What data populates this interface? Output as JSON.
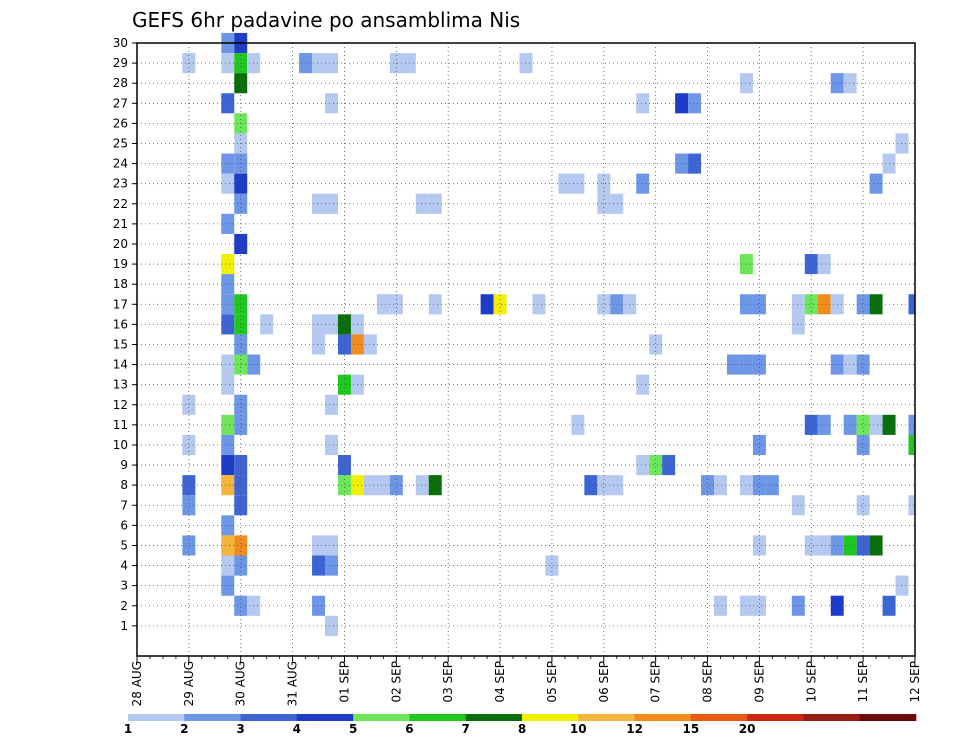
{
  "chart_data": {
    "type": "heatmap",
    "title": "GEFS 6hr padavine po ansamblima Nis",
    "x_labels": [
      "28 AUG",
      "29 AUG",
      "30 AUG",
      "31 AUG",
      "01 SEP",
      "02 SEP",
      "03 SEP",
      "04 SEP",
      "05 SEP",
      "06 SEP",
      "07 SEP",
      "08 SEP",
      "09 SEP",
      "10 SEP",
      "11 SEP",
      "12 SEP"
    ],
    "y_labels": [
      "1",
      "2",
      "3",
      "4",
      "5",
      "6",
      "7",
      "8",
      "9",
      "10",
      "11",
      "12",
      "13",
      "14",
      "15",
      "16",
      "17",
      "18",
      "19",
      "20",
      "21",
      "22",
      "23",
      "24",
      "25",
      "26",
      "27",
      "28",
      "29",
      "30"
    ],
    "steps_per_day": 4,
    "grid": true,
    "colorbar": {
      "tick_labels": [
        "1",
        "2",
        "3",
        "4",
        "5",
        "6",
        "7",
        "8",
        "10",
        "12",
        "15",
        "20"
      ],
      "colors": [
        "#b4c8f0",
        "#6e96e6",
        "#3c64d2",
        "#1e3cc8",
        "#6ee65a",
        "#1ec81e",
        "#0a6e0a",
        "#f0f000",
        "#f5b43c",
        "#f08c1e",
        "#e65a14",
        "#cd2814",
        "#961e14",
        "#6e0a0a"
      ]
    },
    "cells": [
      {
        "t": 7,
        "m": 30,
        "v": 2
      },
      {
        "t": 8,
        "m": 30,
        "v": 4.5
      },
      {
        "t": 4,
        "m": 29,
        "v": 1
      },
      {
        "t": 7,
        "m": 29,
        "v": 1
      },
      {
        "t": 8,
        "m": 29,
        "v": 6
      },
      {
        "t": 9,
        "m": 29,
        "v": 1
      },
      {
        "t": 13,
        "m": 29,
        "v": 2
      },
      {
        "t": 14,
        "m": 29,
        "v": 1
      },
      {
        "t": 15,
        "m": 29,
        "v": 1
      },
      {
        "t": 20,
        "m": 29,
        "v": 1
      },
      {
        "t": 21,
        "m": 29,
        "v": 1
      },
      {
        "t": 30,
        "m": 29,
        "v": 1
      },
      {
        "t": 8,
        "m": 28,
        "v": 7.5
      },
      {
        "t": 47,
        "m": 28,
        "v": 1
      },
      {
        "t": 54,
        "m": 28,
        "v": 2
      },
      {
        "t": 55,
        "m": 28,
        "v": 1
      },
      {
        "t": 7,
        "m": 27,
        "v": 3
      },
      {
        "t": 15,
        "m": 27,
        "v": 1
      },
      {
        "t": 39,
        "m": 27,
        "v": 1
      },
      {
        "t": 42,
        "m": 27,
        "v": 4.5
      },
      {
        "t": 43,
        "m": 27,
        "v": 2
      },
      {
        "t": 8,
        "m": 26,
        "v": 5.5
      },
      {
        "t": 8,
        "m": 25,
        "v": 1
      },
      {
        "t": 59,
        "m": 25,
        "v": 1
      },
      {
        "t": 7,
        "m": 24,
        "v": 2
      },
      {
        "t": 8,
        "m": 24,
        "v": 2
      },
      {
        "t": 42,
        "m": 24,
        "v": 2
      },
      {
        "t": 43,
        "m": 24,
        "v": 3
      },
      {
        "t": 58,
        "m": 24,
        "v": 1
      },
      {
        "t": 7,
        "m": 23,
        "v": 1
      },
      {
        "t": 8,
        "m": 23,
        "v": 4.5
      },
      {
        "t": 33,
        "m": 23,
        "v": 1
      },
      {
        "t": 34,
        "m": 23,
        "v": 1
      },
      {
        "t": 36,
        "m": 23,
        "v": 1
      },
      {
        "t": 39,
        "m": 23,
        "v": 2
      },
      {
        "t": 57,
        "m": 23,
        "v": 2
      },
      {
        "t": 8,
        "m": 22,
        "v": 2
      },
      {
        "t": 14,
        "m": 22,
        "v": 1
      },
      {
        "t": 15,
        "m": 22,
        "v": 1
      },
      {
        "t": 22,
        "m": 22,
        "v": 1
      },
      {
        "t": 23,
        "m": 22,
        "v": 1
      },
      {
        "t": 36,
        "m": 22,
        "v": 1
      },
      {
        "t": 37,
        "m": 22,
        "v": 1
      },
      {
        "t": 7,
        "m": 21,
        "v": 2
      },
      {
        "t": 8,
        "m": 20,
        "v": 4.5
      },
      {
        "t": 7,
        "m": 19,
        "v": 9
      },
      {
        "t": 47,
        "m": 19,
        "v": 5.5
      },
      {
        "t": 52,
        "m": 19,
        "v": 3
      },
      {
        "t": 53,
        "m": 19,
        "v": 1
      },
      {
        "t": 7,
        "m": 18,
        "v": 2
      },
      {
        "t": 7,
        "m": 17,
        "v": 2
      },
      {
        "t": 8,
        "m": 17,
        "v": 6.5
      },
      {
        "t": 19,
        "m": 17,
        "v": 1
      },
      {
        "t": 20,
        "m": 17,
        "v": 1
      },
      {
        "t": 23,
        "m": 17,
        "v": 1
      },
      {
        "t": 27,
        "m": 17,
        "v": 4.5
      },
      {
        "t": 28,
        "m": 17,
        "v": 9
      },
      {
        "t": 31,
        "m": 17,
        "v": 1
      },
      {
        "t": 36,
        "m": 17,
        "v": 1
      },
      {
        "t": 37,
        "m": 17,
        "v": 2
      },
      {
        "t": 38,
        "m": 17,
        "v": 1
      },
      {
        "t": 47,
        "m": 17,
        "v": 2
      },
      {
        "t": 48,
        "m": 17,
        "v": 2
      },
      {
        "t": 51,
        "m": 17,
        "v": 1
      },
      {
        "t": 52,
        "m": 17,
        "v": 5.5
      },
      {
        "t": 53,
        "m": 17,
        "v": 13
      },
      {
        "t": 54,
        "m": 17,
        "v": 1
      },
      {
        "t": 56,
        "m": 17,
        "v": 2
      },
      {
        "t": 57,
        "m": 17,
        "v": 7.5
      },
      {
        "t": 60,
        "m": 17,
        "v": 3
      },
      {
        "t": 7,
        "m": 16,
        "v": 3
      },
      {
        "t": 8,
        "m": 16,
        "v": 6.5
      },
      {
        "t": 10,
        "m": 16,
        "v": 1
      },
      {
        "t": 14,
        "m": 16,
        "v": 1
      },
      {
        "t": 15,
        "m": 16,
        "v": 1
      },
      {
        "t": 16,
        "m": 16,
        "v": 7.5
      },
      {
        "t": 17,
        "m": 16,
        "v": 1
      },
      {
        "t": 51,
        "m": 16,
        "v": 1
      },
      {
        "t": 8,
        "m": 15,
        "v": 2
      },
      {
        "t": 14,
        "m": 15,
        "v": 1
      },
      {
        "t": 16,
        "m": 15,
        "v": 3
      },
      {
        "t": 17,
        "m": 15,
        "v": 13
      },
      {
        "t": 18,
        "m": 15,
        "v": 1
      },
      {
        "t": 40,
        "m": 15,
        "v": 1
      },
      {
        "t": 7,
        "m": 14,
        "v": 1
      },
      {
        "t": 8,
        "m": 14,
        "v": 5.5
      },
      {
        "t": 9,
        "m": 14,
        "v": 2
      },
      {
        "t": 46,
        "m": 14,
        "v": 2
      },
      {
        "t": 47,
        "m": 14,
        "v": 2
      },
      {
        "t": 48,
        "m": 14,
        "v": 2
      },
      {
        "t": 54,
        "m": 14,
        "v": 2
      },
      {
        "t": 55,
        "m": 14,
        "v": 1
      },
      {
        "t": 56,
        "m": 14,
        "v": 2
      },
      {
        "t": 7,
        "m": 13,
        "v": 1
      },
      {
        "t": 16,
        "m": 13,
        "v": 6.5
      },
      {
        "t": 17,
        "m": 13,
        "v": 1
      },
      {
        "t": 39,
        "m": 13,
        "v": 1
      },
      {
        "t": 4,
        "m": 12,
        "v": 1
      },
      {
        "t": 8,
        "m": 12,
        "v": 2
      },
      {
        "t": 15,
        "m": 12,
        "v": 1
      },
      {
        "t": 7,
        "m": 11,
        "v": 5.5
      },
      {
        "t": 8,
        "m": 11,
        "v": 2
      },
      {
        "t": 34,
        "m": 11,
        "v": 1
      },
      {
        "t": 52,
        "m": 11,
        "v": 3
      },
      {
        "t": 53,
        "m": 11,
        "v": 2
      },
      {
        "t": 55,
        "m": 11,
        "v": 2
      },
      {
        "t": 56,
        "m": 11,
        "v": 5.5
      },
      {
        "t": 57,
        "m": 11,
        "v": 1
      },
      {
        "t": 58,
        "m": 11,
        "v": 7.5
      },
      {
        "t": 60,
        "m": 11,
        "v": 2
      },
      {
        "t": 4,
        "m": 10,
        "v": 1
      },
      {
        "t": 7,
        "m": 10,
        "v": 2
      },
      {
        "t": 15,
        "m": 10,
        "v": 1
      },
      {
        "t": 48,
        "m": 10,
        "v": 2
      },
      {
        "t": 56,
        "m": 10,
        "v": 2
      },
      {
        "t": 60,
        "m": 10,
        "v": 6.5
      },
      {
        "t": 7,
        "m": 9,
        "v": 4.5
      },
      {
        "t": 8,
        "m": 9,
        "v": 3
      },
      {
        "t": 16,
        "m": 9,
        "v": 3
      },
      {
        "t": 39,
        "m": 9,
        "v": 1
      },
      {
        "t": 40,
        "m": 9,
        "v": 5.5
      },
      {
        "t": 41,
        "m": 9,
        "v": 3
      },
      {
        "t": 4,
        "m": 8,
        "v": 3
      },
      {
        "t": 7,
        "m": 8,
        "v": 11
      },
      {
        "t": 8,
        "m": 8,
        "v": 3
      },
      {
        "t": 16,
        "m": 8,
        "v": 5.5
      },
      {
        "t": 17,
        "m": 8,
        "v": 9
      },
      {
        "t": 18,
        "m": 8,
        "v": 1
      },
      {
        "t": 19,
        "m": 8,
        "v": 1
      },
      {
        "t": 20,
        "m": 8,
        "v": 2
      },
      {
        "t": 22,
        "m": 8,
        "v": 1
      },
      {
        "t": 23,
        "m": 8,
        "v": 7.5
      },
      {
        "t": 35,
        "m": 8,
        "v": 3
      },
      {
        "t": 36,
        "m": 8,
        "v": 1
      },
      {
        "t": 37,
        "m": 8,
        "v": 1
      },
      {
        "t": 44,
        "m": 8,
        "v": 2
      },
      {
        "t": 45,
        "m": 8,
        "v": 1
      },
      {
        "t": 47,
        "m": 8,
        "v": 1
      },
      {
        "t": 48,
        "m": 8,
        "v": 2
      },
      {
        "t": 49,
        "m": 8,
        "v": 2
      },
      {
        "t": 4,
        "m": 7,
        "v": 2
      },
      {
        "t": 8,
        "m": 7,
        "v": 3
      },
      {
        "t": 51,
        "m": 7,
        "v": 1
      },
      {
        "t": 56,
        "m": 7,
        "v": 1
      },
      {
        "t": 60,
        "m": 7,
        "v": 1
      },
      {
        "t": 7,
        "m": 6,
        "v": 2
      },
      {
        "t": 4,
        "m": 5,
        "v": 2
      },
      {
        "t": 7,
        "m": 5,
        "v": 11
      },
      {
        "t": 8,
        "m": 5,
        "v": 13
      },
      {
        "t": 14,
        "m": 5,
        "v": 1
      },
      {
        "t": 15,
        "m": 5,
        "v": 1
      },
      {
        "t": 48,
        "m": 5,
        "v": 1
      },
      {
        "t": 52,
        "m": 5,
        "v": 1
      },
      {
        "t": 53,
        "m": 5,
        "v": 1
      },
      {
        "t": 54,
        "m": 5,
        "v": 2
      },
      {
        "t": 55,
        "m": 5,
        "v": 6.5
      },
      {
        "t": 56,
        "m": 5,
        "v": 3
      },
      {
        "t": 57,
        "m": 5,
        "v": 7.5
      },
      {
        "t": 7,
        "m": 4,
        "v": 1
      },
      {
        "t": 8,
        "m": 4,
        "v": 2
      },
      {
        "t": 14,
        "m": 4,
        "v": 3
      },
      {
        "t": 15,
        "m": 4,
        "v": 2
      },
      {
        "t": 32,
        "m": 4,
        "v": 1
      },
      {
        "t": 7,
        "m": 3,
        "v": 2
      },
      {
        "t": 59,
        "m": 3,
        "v": 1
      },
      {
        "t": 8,
        "m": 2,
        "v": 2
      },
      {
        "t": 9,
        "m": 2,
        "v": 1
      },
      {
        "t": 14,
        "m": 2,
        "v": 2
      },
      {
        "t": 45,
        "m": 2,
        "v": 1
      },
      {
        "t": 47,
        "m": 2,
        "v": 1
      },
      {
        "t": 48,
        "m": 2,
        "v": 1
      },
      {
        "t": 51,
        "m": 2,
        "v": 2
      },
      {
        "t": 54,
        "m": 2,
        "v": 4.5
      },
      {
        "t": 58,
        "m": 2,
        "v": 3
      },
      {
        "t": 15,
        "m": 1,
        "v": 1
      }
    ]
  }
}
